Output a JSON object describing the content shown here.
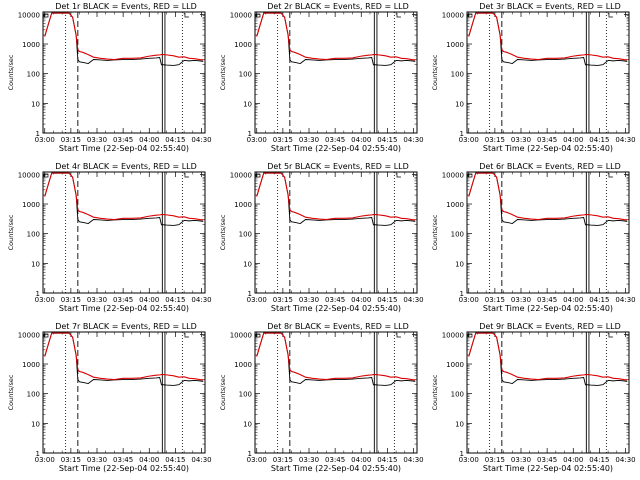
{
  "figure": {
    "xlabel_template": "Start Time (22-Sep-04 02:55:40)",
    "ylabel": "Counts/sec"
  },
  "shared": {
    "x_ticks": [
      "03:00",
      "03:15",
      "03:30",
      "03:45",
      "04:00",
      "04:15",
      "04:30"
    ],
    "x_tick_minutes": [
      0,
      15,
      30,
      45,
      60,
      75,
      90
    ],
    "x_range_minutes": [
      -1,
      92
    ],
    "y_ticks": [
      "1",
      "10",
      "100",
      "1000",
      "10000"
    ],
    "y_tick_values": [
      1,
      10,
      100,
      1000,
      10000
    ],
    "y_range": [
      1,
      12000
    ],
    "y_scale": "log",
    "colors": {
      "events": "#000000",
      "lld": "#dd0000"
    },
    "markers": {
      "dotted": [
        12,
        79
      ],
      "dashed": [
        19
      ],
      "solid": [
        67.5,
        69
      ]
    },
    "series_shape": {
      "x": [
        0,
        2,
        4,
        6,
        8,
        10,
        12,
        14,
        16,
        18,
        19,
        20,
        22,
        25,
        28,
        32,
        36,
        40,
        45,
        50,
        55,
        60,
        64,
        66,
        67,
        68,
        70,
        74,
        77,
        80,
        83,
        86,
        89,
        91
      ],
      "lld": [
        1800,
        4500,
        11000,
        11000,
        11000,
        11000,
        11000,
        11000,
        8000,
        2000,
        650,
        560,
        520,
        440,
        360,
        330,
        310,
        300,
        330,
        330,
        340,
        390,
        420,
        430,
        440,
        440,
        430,
        400,
        360,
        370,
        330,
        320,
        300,
        290
      ],
      "events": [
        1800,
        4500,
        11000,
        11000,
        11000,
        11000,
        11000,
        11000,
        8000,
        2000,
        300,
        250,
        240,
        220,
        300,
        290,
        280,
        290,
        300,
        300,
        310,
        330,
        340,
        350,
        200,
        200,
        195,
        190,
        200,
        280,
        270,
        280,
        270,
        260
      ]
    }
  },
  "panels": [
    {
      "title": "Det 1r BLACK = Events, RED = LLD"
    },
    {
      "title": "Det 2r BLACK = Events, RED = LLD"
    },
    {
      "title": "Det 3r BLACK = Events, RED = LLD"
    },
    {
      "title": "Det 4r BLACK = Events, RED = LLD"
    },
    {
      "title": "Det 5r BLACK = Events, RED = LLD"
    },
    {
      "title": "Det 6r BLACK = Events, RED = LLD"
    },
    {
      "title": "Det 7r BLACK = Events, RED = LLD"
    },
    {
      "title": "Det 8r BLACK = Events, RED = LLD"
    },
    {
      "title": "Det 9r BLACK = Events, RED = LLD"
    }
  ],
  "chart_data": [
    {
      "type": "line",
      "title": "Det 1r BLACK = Events, RED = LLD",
      "xlabel": "Start Time (22-Sep-04 02:55:40)",
      "ylabel": "Counts/sec",
      "y_scale": "log",
      "ylim": [
        1,
        12000
      ],
      "series": [
        {
          "name": "Events",
          "color": "black",
          "ref": "shared.series_shape.events"
        },
        {
          "name": "LLD",
          "color": "red",
          "ref": "shared.series_shape.lld"
        }
      ]
    },
    {
      "type": "line",
      "title": "Det 2r BLACK = Events, RED = LLD",
      "xlabel": "Start Time (22-Sep-04 02:55:40)",
      "ylabel": "Counts/sec",
      "y_scale": "log",
      "ylim": [
        1,
        12000
      ],
      "series": [
        {
          "name": "Events",
          "color": "black",
          "ref": "shared.series_shape.events"
        },
        {
          "name": "LLD",
          "color": "red",
          "ref": "shared.series_shape.lld"
        }
      ]
    },
    {
      "type": "line",
      "title": "Det 3r BLACK = Events, RED = LLD",
      "xlabel": "Start Time (22-Sep-04 02:55:40)",
      "ylabel": "Counts/sec",
      "y_scale": "log",
      "ylim": [
        1,
        12000
      ],
      "series": [
        {
          "name": "Events",
          "color": "black",
          "ref": "shared.series_shape.events"
        },
        {
          "name": "LLD",
          "color": "red",
          "ref": "shared.series_shape.lld"
        }
      ]
    },
    {
      "type": "line",
      "title": "Det 4r BLACK = Events, RED = LLD",
      "xlabel": "Start Time (22-Sep-04 02:55:40)",
      "ylabel": "Counts/sec",
      "y_scale": "log",
      "ylim": [
        1,
        12000
      ],
      "series": [
        {
          "name": "Events",
          "color": "black",
          "ref": "shared.series_shape.events"
        },
        {
          "name": "LLD",
          "color": "red",
          "ref": "shared.series_shape.lld"
        }
      ]
    },
    {
      "type": "line",
      "title": "Det 5r BLACK = Events, RED = LLD",
      "xlabel": "Start Time (22-Sep-04 02:55:40)",
      "ylabel": "Counts/sec",
      "y_scale": "log",
      "ylim": [
        1,
        12000
      ],
      "series": [
        {
          "name": "Events",
          "color": "black",
          "ref": "shared.series_shape.events"
        },
        {
          "name": "LLD",
          "color": "red",
          "ref": "shared.series_shape.lld"
        }
      ]
    },
    {
      "type": "line",
      "title": "Det 6r BLACK = Events, RED = LLD",
      "xlabel": "Start Time (22-Sep-04 02:55:40)",
      "ylabel": "Counts/sec",
      "y_scale": "log",
      "ylim": [
        1,
        12000
      ],
      "series": [
        {
          "name": "Events",
          "color": "black",
          "ref": "shared.series_shape.events"
        },
        {
          "name": "LLD",
          "color": "red",
          "ref": "shared.series_shape.lld"
        }
      ]
    },
    {
      "type": "line",
      "title": "Det 7r BLACK = Events, RED = LLD",
      "xlabel": "Start Time (22-Sep-04 02:55:40)",
      "ylabel": "Counts/sec",
      "y_scale": "log",
      "ylim": [
        1,
        12000
      ],
      "series": [
        {
          "name": "Events",
          "color": "black",
          "ref": "shared.series_shape.events"
        },
        {
          "name": "LLD",
          "color": "red",
          "ref": "shared.series_shape.lld"
        }
      ]
    },
    {
      "type": "line",
      "title": "Det 8r BLACK = Events, RED = LLD",
      "xlabel": "Start Time (22-Sep-04 02:55:40)",
      "ylabel": "Counts/sec",
      "y_scale": "log",
      "ylim": [
        1,
        12000
      ],
      "series": [
        {
          "name": "Events",
          "color": "black",
          "ref": "shared.series_shape.events"
        },
        {
          "name": "LLD",
          "color": "red",
          "ref": "shared.series_shape.lld"
        }
      ]
    },
    {
      "type": "line",
      "title": "Det 9r BLACK = Events, RED = LLD",
      "xlabel": "Start Time (22-Sep-04 02:55:40)",
      "ylabel": "Counts/sec",
      "y_scale": "log",
      "ylim": [
        1,
        12000
      ],
      "series": [
        {
          "name": "Events",
          "color": "black",
          "ref": "shared.series_shape.events"
        },
        {
          "name": "LLD",
          "color": "red",
          "ref": "shared.series_shape.lld"
        }
      ]
    }
  ]
}
